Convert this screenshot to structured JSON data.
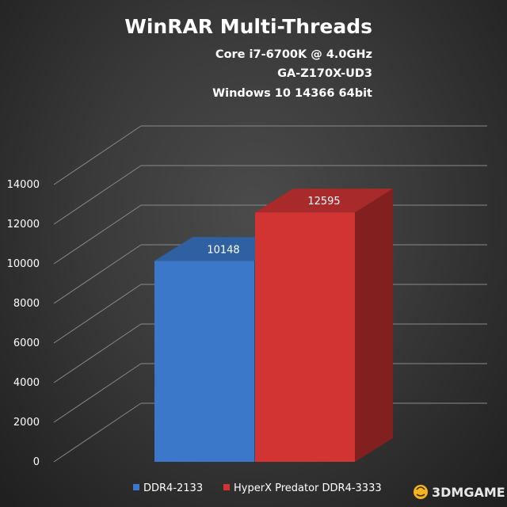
{
  "chart_data": {
    "type": "bar",
    "title": "WinRAR Multi-Threads",
    "subtitles": [
      "Core i7-6700K @ 4.0GHz",
      "GA-Z170X-UD3",
      "Windows 10 14366 64bit"
    ],
    "series": [
      {
        "name": "DDR4-2133",
        "value": 10148,
        "color": "#3b78c9"
      },
      {
        "name": "HyperX Predator DDR4-3333",
        "value": 12595,
        "color": "#d23434"
      }
    ],
    "ylim": [
      0,
      14000
    ],
    "yticks": [
      0,
      2000,
      4000,
      6000,
      8000,
      10000,
      12000,
      14000
    ],
    "grid": true,
    "legend_position": "bottom"
  },
  "watermark": {
    "text": "3DMGAME"
  },
  "colors": {
    "background": "#3a3a3a",
    "gridline": "#8a8a8a",
    "text": "#ffffff"
  }
}
